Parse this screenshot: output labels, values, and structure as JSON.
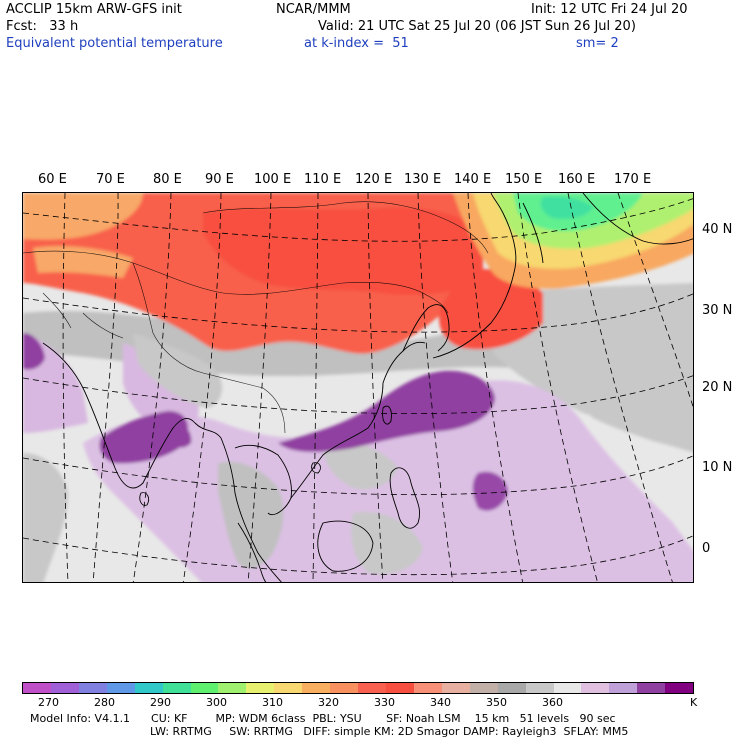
{
  "header": {
    "line1_left": "ACCLIP 15km ARW-GFS init",
    "line1_mid": "NCAR/MMM",
    "line1_right": "Init: 12 UTC Fri 24 Jul 20",
    "line2_left": "Fcst:   33 h",
    "line2_right": "Valid: 21 UTC Sat 25 Jul 20 (06 JST Sun 26 Jul 20)",
    "line3_left": "Equivalent potential temperature",
    "line3_mid": "at k-index =  51",
    "line3_right": "sm= 2"
  },
  "map": {
    "longitude_labels": [
      "60 E",
      "70 E",
      "80 E",
      "90 E",
      "100 E",
      "110 E",
      "120 E",
      "130 E",
      "140 E",
      "150 E",
      "160 E",
      "170 E"
    ],
    "latitude_labels": [
      "40 N",
      "30 N",
      "20 N",
      "10 N",
      "0"
    ]
  },
  "colorbar": {
    "colors": [
      "#c050c8",
      "#a060d8",
      "#8080e0",
      "#6098e8",
      "#30c8c8",
      "#40e098",
      "#60f070",
      "#a0f070",
      "#e8f070",
      "#f8d870",
      "#f8b060",
      "#f89060",
      "#f86050",
      "#f85040",
      "#f89078",
      "#e8b0a0",
      "#c0b0a8",
      "#a8a8a8",
      "#c8c8c8",
      "#e8e8e8",
      "#e0c0e0",
      "#c0a0d8",
      "#9040a0",
      "#800080"
    ],
    "labels": [
      "270",
      "280",
      "290",
      "300",
      "310",
      "320",
      "330",
      "340",
      "350",
      "360"
    ],
    "unit": "K"
  },
  "footer": {
    "line1": "Model Info: V4.1.1      CU: KF        MP: WDM 6class  PBL: YSU       SF: Noah LSM    15 km   51 levels   90 sec",
    "line2": "LW: RRTMG     SW: RRTMG   DIFF: simple KM: 2D Smagor DAMP: Rayleigh3  SFLAY: MM5"
  }
}
